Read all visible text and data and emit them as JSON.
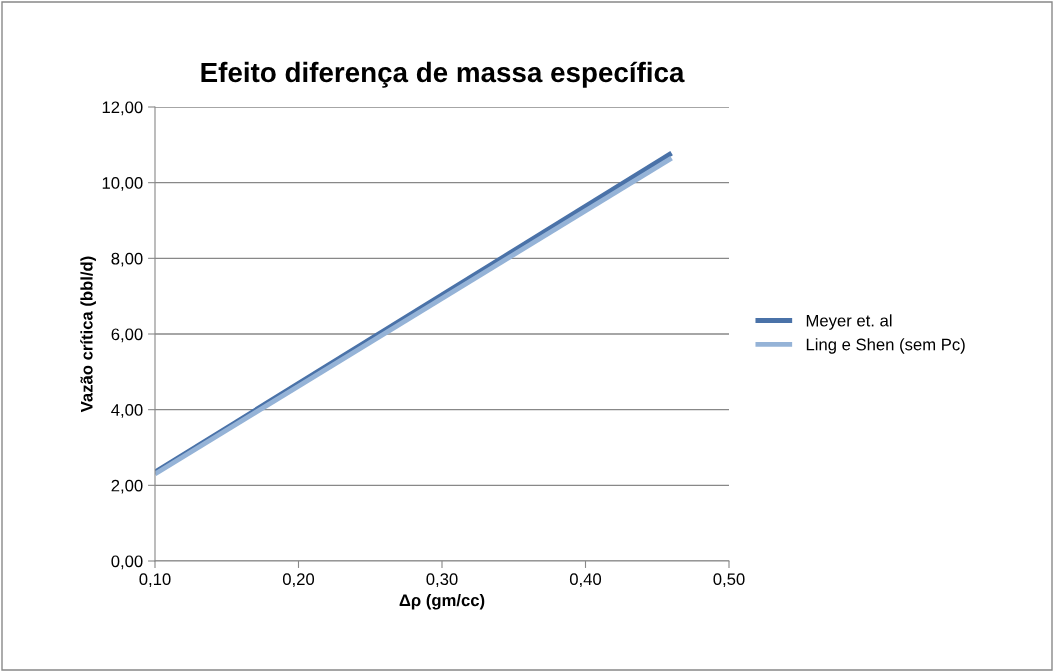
{
  "chart_data": {
    "type": "line",
    "title": "Efeito diferença de massa específica",
    "xlabel": "Δρ (gm/cc)",
    "ylabel": "Vazão crítica (bbl/d)",
    "series": [
      {
        "name": "Meyer et. al",
        "color": "#4a72a8",
        "values": [
          2.35,
          10.78
        ]
      },
      {
        "name": "Ling e Shen (sem Pc)",
        "color": "#95b3d7",
        "values": [
          2.3,
          10.65
        ]
      }
    ],
    "x": [
      0.1,
      0.46
    ],
    "xlim": [
      0.1,
      0.5
    ],
    "xticks": [
      {
        "value": 0.1,
        "label": "0,10"
      },
      {
        "value": 0.2,
        "label": "0,20"
      },
      {
        "value": 0.3,
        "label": "0,30"
      },
      {
        "value": 0.4,
        "label": "0,40"
      },
      {
        "value": 0.5,
        "label": "0,50"
      }
    ],
    "ylim": [
      0,
      12
    ],
    "yticks": [
      {
        "value": 0,
        "label": "0,00"
      },
      {
        "value": 2,
        "label": "2,00"
      },
      {
        "value": 4,
        "label": "4,00"
      },
      {
        "value": 6,
        "label": "6,00"
      },
      {
        "value": 8,
        "label": "8,00"
      },
      {
        "value": 10,
        "label": "10,00"
      },
      {
        "value": 12,
        "label": "12,00"
      }
    ],
    "grid": "y",
    "legend": "right",
    "marker": "none",
    "line_style": "solid"
  }
}
